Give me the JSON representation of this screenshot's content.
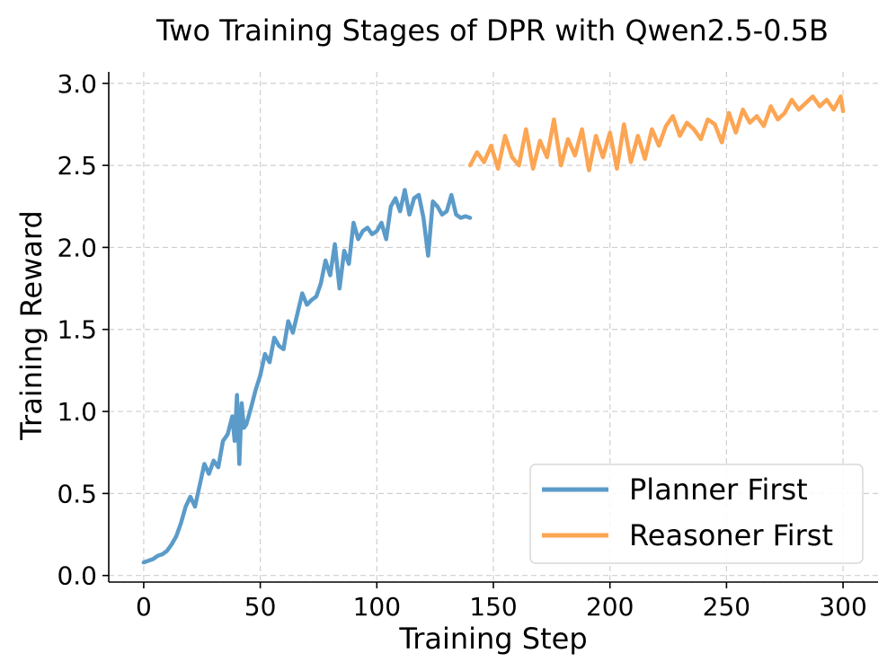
{
  "chart_data": {
    "type": "line",
    "title": "Two Training Stages of DPR with Qwen2.5-0.5B",
    "xlabel": "Training Step",
    "ylabel": "Training Reward",
    "xlim": [
      -15,
      315
    ],
    "ylim": [
      -0.04,
      3.07
    ],
    "xticks": [
      0,
      50,
      100,
      150,
      200,
      250,
      300
    ],
    "yticks": [
      0.0,
      0.5,
      1.0,
      1.5,
      2.0,
      2.5,
      3.0
    ],
    "xtick_labels": [
      "0",
      "50",
      "100",
      "150",
      "200",
      "250",
      "300"
    ],
    "ytick_labels": [
      "0.0",
      "0.5",
      "1.0",
      "1.5",
      "2.0",
      "2.5",
      "3.0"
    ],
    "grid": true,
    "legend": "lower-right",
    "series": [
      {
        "name": "Planner First",
        "color": "#5b9bc9",
        "x": [
          0,
          2,
          4,
          6,
          8,
          10,
          12,
          14,
          16,
          18,
          20,
          22,
          24,
          26,
          28,
          30,
          32,
          34,
          36,
          38,
          39,
          40,
          41,
          42,
          43,
          44,
          46,
          48,
          50,
          52,
          54,
          56,
          58,
          60,
          62,
          64,
          66,
          68,
          70,
          72,
          74,
          76,
          78,
          80,
          82,
          84,
          86,
          88,
          90,
          92,
          94,
          96,
          98,
          100,
          102,
          104,
          106,
          108,
          110,
          112,
          114,
          116,
          118,
          120,
          122,
          124,
          126,
          128,
          130,
          132,
          134,
          136,
          138,
          140
        ],
        "values": [
          0.08,
          0.09,
          0.1,
          0.12,
          0.13,
          0.15,
          0.19,
          0.24,
          0.32,
          0.42,
          0.48,
          0.42,
          0.55,
          0.68,
          0.62,
          0.7,
          0.66,
          0.82,
          0.86,
          0.97,
          0.82,
          1.1,
          0.68,
          1.05,
          0.9,
          0.92,
          1.02,
          1.13,
          1.22,
          1.35,
          1.3,
          1.45,
          1.4,
          1.38,
          1.55,
          1.48,
          1.6,
          1.72,
          1.65,
          1.68,
          1.7,
          1.78,
          1.92,
          1.83,
          2.02,
          1.75,
          1.98,
          1.9,
          2.15,
          2.05,
          2.1,
          2.12,
          2.08,
          2.1,
          2.15,
          2.05,
          2.25,
          2.3,
          2.22,
          2.35,
          2.2,
          2.3,
          2.32,
          2.18,
          1.95,
          2.28,
          2.25,
          2.2,
          2.22,
          2.32,
          2.2,
          2.18,
          2.19,
          2.18
        ]
      },
      {
        "name": "Reasoner First",
        "color": "#fca553",
        "x": [
          140,
          143,
          146,
          149,
          152,
          155,
          158,
          161,
          164,
          167,
          170,
          173,
          176,
          179,
          182,
          185,
          188,
          191,
          194,
          197,
          200,
          203,
          206,
          209,
          212,
          215,
          218,
          221,
          224,
          227,
          230,
          233,
          236,
          239,
          242,
          245,
          248,
          251,
          254,
          257,
          260,
          263,
          266,
          269,
          272,
          275,
          278,
          281,
          284,
          287,
          290,
          293,
          296,
          299,
          300
        ],
        "values": [
          2.5,
          2.58,
          2.52,
          2.62,
          2.48,
          2.68,
          2.55,
          2.5,
          2.72,
          2.48,
          2.65,
          2.55,
          2.78,
          2.5,
          2.66,
          2.56,
          2.72,
          2.47,
          2.68,
          2.55,
          2.7,
          2.48,
          2.75,
          2.52,
          2.68,
          2.54,
          2.72,
          2.62,
          2.74,
          2.8,
          2.68,
          2.76,
          2.72,
          2.66,
          2.78,
          2.75,
          2.64,
          2.82,
          2.7,
          2.84,
          2.76,
          2.8,
          2.74,
          2.86,
          2.78,
          2.82,
          2.9,
          2.84,
          2.88,
          2.92,
          2.86,
          2.9,
          2.84,
          2.92,
          2.83
        ]
      }
    ]
  }
}
